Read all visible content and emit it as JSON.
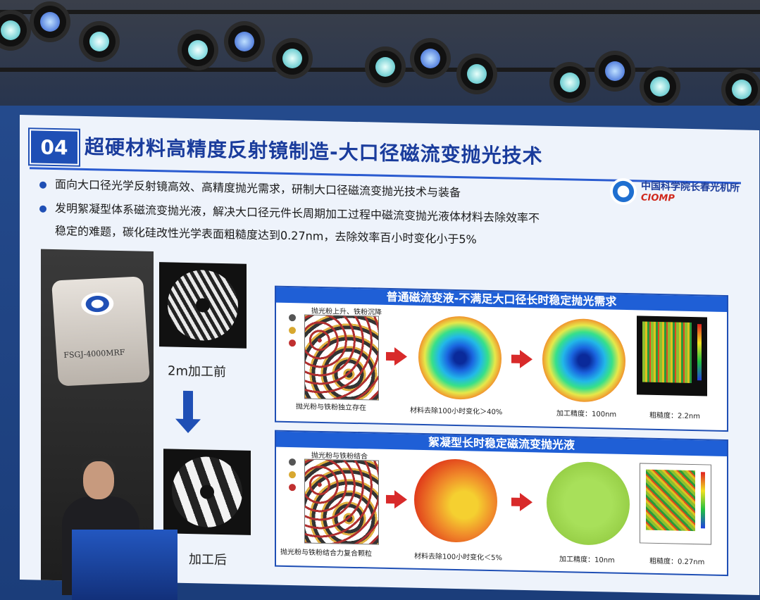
{
  "slide": {
    "section_number": "04",
    "title": "超硬材料高精度反射镜制造-大口径磁流变抛光技术",
    "logo": {
      "cn": "中国科学院长春光机所",
      "en": "CIOMP"
    },
    "bullets": [
      "面向大口径光学反射镜高效、高精度抛光需求，研制大口径磁流变抛光技术与装备",
      "发明絮凝型体系磁流变抛光液，解决大口径元件长周期加工过程中磁流变抛光液体材料去除效率不",
      "稳定的难题，碳化硅改性光学表面粗糙度达到0.27nm，去除效率百小时变化小于5%"
    ],
    "machine_model": "FSGJ-4000MRF",
    "before_label": "2m加工前",
    "after_label": "加工后",
    "panel_top": {
      "header": "普通磁流变液-不满足大口径长时稳定抛光需求",
      "note_top": "抛光粉上升、铁粉沉降",
      "note_bottom": "抛光粉与铁粉独立存在",
      "removal": "材料去除100小时变化＞40%",
      "accuracy": "加工精度：100nm",
      "roughness": "粗糙度：2.2nm"
    },
    "panel_bottom": {
      "header": "絮凝型长时稳定磁流变抛光液",
      "note_top": "抛光粉与铁粉结合",
      "note_bottom": "抛光粉与铁粉结合力复合颗粒",
      "removal": "材料去除100小时变化＜5%",
      "accuracy": "加工精度：10nm",
      "roughness": "粗糙度：0.27nm"
    }
  },
  "colors": {
    "title_blue": "#1a3c9c",
    "header_blue": "#1f5fd6",
    "arrow_red": "#d82a2a"
  }
}
